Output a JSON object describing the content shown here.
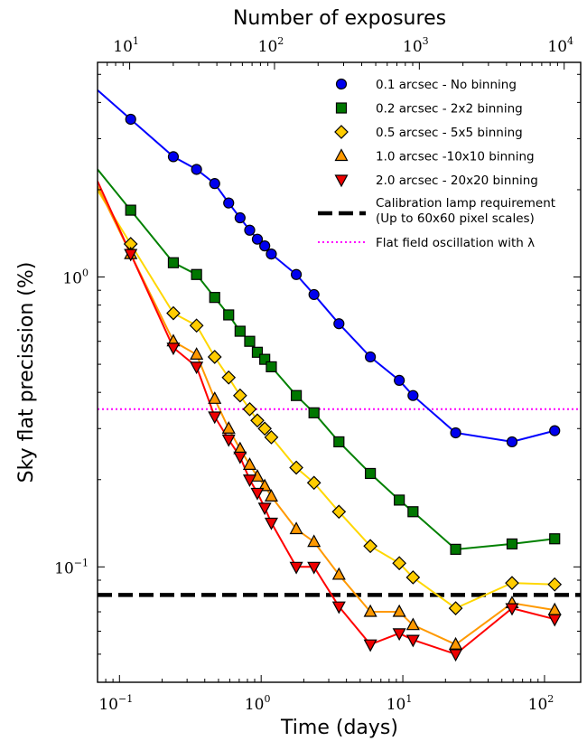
{
  "chart_data": {
    "type": "line",
    "title": "",
    "xlabel": "Time (days)",
    "ylabel": "Sky flat precission (%)",
    "x2label": "Number of exposures",
    "xscale": "log",
    "yscale": "log",
    "xlim": [
      0.07,
      180
    ],
    "ylim": [
      0.04,
      5.5
    ],
    "x2lim": [
      6,
      13000
    ],
    "xticks": [
      {
        "value": 0.1,
        "base": "10",
        "exp": "−1"
      },
      {
        "value": 1,
        "base": "10",
        "exp": "0"
      },
      {
        "value": 10,
        "base": "10",
        "exp": "1"
      },
      {
        "value": 100,
        "base": "10",
        "exp": "2"
      }
    ],
    "yticks": [
      {
        "value": 0.1,
        "base": "10",
        "exp": "−1"
      },
      {
        "value": 1,
        "base": "10",
        "exp": "0"
      }
    ],
    "x2ticks": [
      {
        "value": 10,
        "base": "10",
        "exp": "1"
      },
      {
        "value": 100,
        "base": "10",
        "exp": "2"
      },
      {
        "value": 1000,
        "base": "10",
        "exp": "3"
      },
      {
        "value": 10000,
        "base": "10",
        "exp": "4"
      }
    ],
    "grid": false,
    "legend_position": "upper-right",
    "series": [
      {
        "name": "0.1 arcsec - No binning",
        "color": "#0000ff",
        "marker": "circle",
        "marker_color": "#0000ee",
        "x": [
          0.12,
          0.24,
          0.35,
          0.47,
          0.59,
          0.71,
          0.83,
          0.94,
          1.06,
          1.18,
          1.77,
          2.36,
          3.54,
          5.9,
          9.44,
          11.8,
          23.6,
          59,
          118
        ],
        "y": [
          3.5,
          2.6,
          2.35,
          2.1,
          1.8,
          1.6,
          1.45,
          1.35,
          1.28,
          1.2,
          1.02,
          0.87,
          0.69,
          0.53,
          0.44,
          0.39,
          0.29,
          0.27,
          0.295
        ]
      },
      {
        "name": "0.2 arcsec - 2x2 binning",
        "color": "#008000",
        "marker": "square",
        "marker_color": "#007700",
        "x": [
          0.12,
          0.24,
          0.35,
          0.47,
          0.59,
          0.71,
          0.83,
          0.94,
          1.06,
          1.18,
          1.77,
          2.36,
          3.54,
          5.9,
          9.44,
          11.8,
          23.6,
          59,
          118
        ],
        "y": [
          1.7,
          1.12,
          1.02,
          0.85,
          0.74,
          0.65,
          0.6,
          0.55,
          0.52,
          0.49,
          0.39,
          0.34,
          0.27,
          0.21,
          0.17,
          0.155,
          0.115,
          0.12,
          0.125
        ]
      },
      {
        "name": "0.5 arcsec - 5x5 binning",
        "color": "#ffd700",
        "marker": "diamond",
        "marker_color": "#ffcc00",
        "x": [
          0.12,
          0.24,
          0.35,
          0.47,
          0.59,
          0.71,
          0.83,
          0.94,
          1.06,
          1.18,
          1.77,
          2.36,
          3.54,
          5.9,
          9.44,
          11.8,
          23.6,
          59,
          118
        ],
        "y": [
          1.3,
          0.75,
          0.68,
          0.53,
          0.45,
          0.39,
          0.35,
          0.32,
          0.3,
          0.28,
          0.22,
          0.195,
          0.155,
          0.118,
          0.103,
          0.092,
          0.072,
          0.088,
          0.087
        ]
      },
      {
        "name": "1.0 arcsec -10x10 binning",
        "color": "#ff9900",
        "marker": "triangle-up",
        "marker_color": "#ff9900",
        "x": [
          0.12,
          0.24,
          0.35,
          0.47,
          0.59,
          0.71,
          0.83,
          0.94,
          1.06,
          1.18,
          1.77,
          2.36,
          3.54,
          5.9,
          9.44,
          11.8,
          23.6,
          59,
          118
        ],
        "y": [
          1.2,
          0.6,
          0.54,
          0.38,
          0.3,
          0.255,
          0.225,
          0.205,
          0.19,
          0.175,
          0.135,
          0.122,
          0.094,
          0.07,
          0.07,
          0.063,
          0.054,
          0.075,
          0.071
        ]
      },
      {
        "name": "2.0 arcsec - 20x20 binning",
        "color": "#ff0000",
        "marker": "triangle-down",
        "marker_color": "#ee0000",
        "x": [
          0.12,
          0.24,
          0.35,
          0.47,
          0.59,
          0.71,
          0.83,
          0.94,
          1.06,
          1.18,
          1.77,
          2.36,
          3.54,
          5.9,
          9.44,
          11.8,
          23.6,
          59,
          118
        ],
        "y": [
          1.2,
          0.57,
          0.49,
          0.33,
          0.275,
          0.24,
          0.2,
          0.18,
          0.16,
          0.142,
          0.1,
          0.1,
          0.073,
          0.054,
          0.059,
          0.056,
          0.05,
          0.072,
          0.066
        ]
      }
    ],
    "reference_lines": [
      {
        "name": "Calibration lamp requirement",
        "name_line2": "(Up to 60x60 pixel scales)",
        "y": 0.08,
        "color": "#000000",
        "style": "dashed"
      },
      {
        "name": "Flat field oscillation with λ",
        "y": 0.35,
        "color": "#ff00ff",
        "style": "dotted"
      }
    ]
  }
}
